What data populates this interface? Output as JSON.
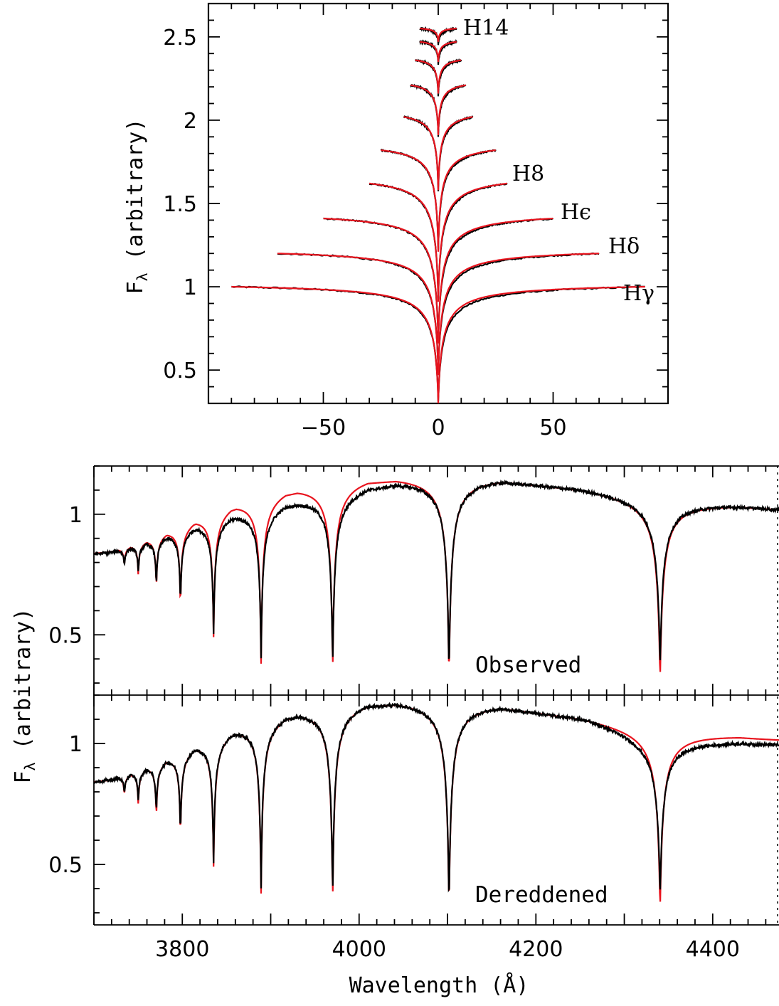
{
  "chart_data": [
    {
      "type": "line",
      "panel": "line-profiles",
      "ylabel": "F",
      "ylabel_subscript": "λ",
      "ylabel_unit": "(arbitrary)",
      "xlim": [
        -100,
        100
      ],
      "ylim": [
        0.3,
        2.7
      ],
      "xticks": [
        -50,
        0,
        50
      ],
      "xtick_labels": [
        "−50",
        "0",
        "50"
      ],
      "yticks": [
        0.5,
        1,
        1.5,
        2,
        2.5
      ],
      "ytick_labels": [
        "0.5",
        "1",
        "1.5",
        "2",
        "2.5"
      ],
      "series_colors": {
        "observed": "#000000",
        "model": "#e8141e"
      },
      "lines": [
        {
          "label": "Hγ",
          "halfwidth": 90,
          "continuum": 1.0,
          "depth": 0.7,
          "width": 2.0
        },
        {
          "label": "Hδ",
          "halfwidth": 70,
          "continuum": 1.2,
          "depth": 0.73,
          "width": 1.9
        },
        {
          "label": "Hϵ",
          "halfwidth": 50,
          "continuum": 1.41,
          "depth": 0.75,
          "width": 1.8
        },
        {
          "label": "H8",
          "halfwidth": 30,
          "continuum": 1.62,
          "depth": 0.71,
          "width": 1.7
        },
        {
          "label": "",
          "halfwidth": 25,
          "continuum": 1.82,
          "depth": 0.61,
          "width": 1.4
        },
        {
          "label": "",
          "halfwidth": 15,
          "continuum": 2.02,
          "depth": 0.44,
          "width": 1.2
        },
        {
          "label": "",
          "halfwidth": 12,
          "continuum": 2.21,
          "depth": 0.3,
          "width": 1.0
        },
        {
          "label": "",
          "halfwidth": 10,
          "continuum": 2.36,
          "depth": 0.2,
          "width": 0.9
        },
        {
          "label": "",
          "halfwidth": 8,
          "continuum": 2.47,
          "depth": 0.12,
          "width": 0.8
        },
        {
          "label": "H14",
          "halfwidth": 8,
          "continuum": 2.55,
          "depth": 0.08,
          "width": 0.7
        }
      ]
    },
    {
      "type": "line",
      "panel": "observed",
      "title": "Observed",
      "ylabel": "F",
      "ylabel_subscript": "λ",
      "ylabel_unit": "(arbitrary)",
      "xlabel": "Wavelength (Å)",
      "xlim": [
        3700,
        4475
      ],
      "ylim": [
        0.25,
        1.2
      ],
      "yticks": [
        0.5,
        1
      ],
      "ytick_labels": [
        "0.5",
        "1"
      ],
      "series": [
        {
          "color": "#000000",
          "lines_min": [
            0.36,
            0.33,
            0.37,
            0.4,
            0.5,
            0.62,
            0.7,
            0.75,
            0.78
          ]
        },
        {
          "color": "#e8141e",
          "lines_min": [
            0.31,
            0.32,
            0.35,
            0.38,
            0.48,
            0.61,
            0.69,
            0.74,
            0.78
          ]
        }
      ],
      "line_centers": [
        4340.5,
        4101.7,
        3970.1,
        3889.1,
        3835.4,
        3797.9,
        3770.6,
        3750.2,
        3734.4
      ]
    },
    {
      "type": "line",
      "panel": "dereddened",
      "title": "Dereddened",
      "xlabel": "Wavelength (Å)",
      "xlim": [
        3700,
        4475
      ],
      "ylim": [
        0.25,
        1.2
      ],
      "xticks": [
        3800,
        4000,
        4200,
        4400
      ],
      "xtick_labels": [
        "3800",
        "4000",
        "4200",
        "4400"
      ],
      "yticks": [
        0.5,
        1
      ],
      "ytick_labels": [
        "0.5",
        "1"
      ],
      "series": [
        {
          "color": "#000000"
        },
        {
          "color": "#e8141e"
        }
      ]
    }
  ]
}
